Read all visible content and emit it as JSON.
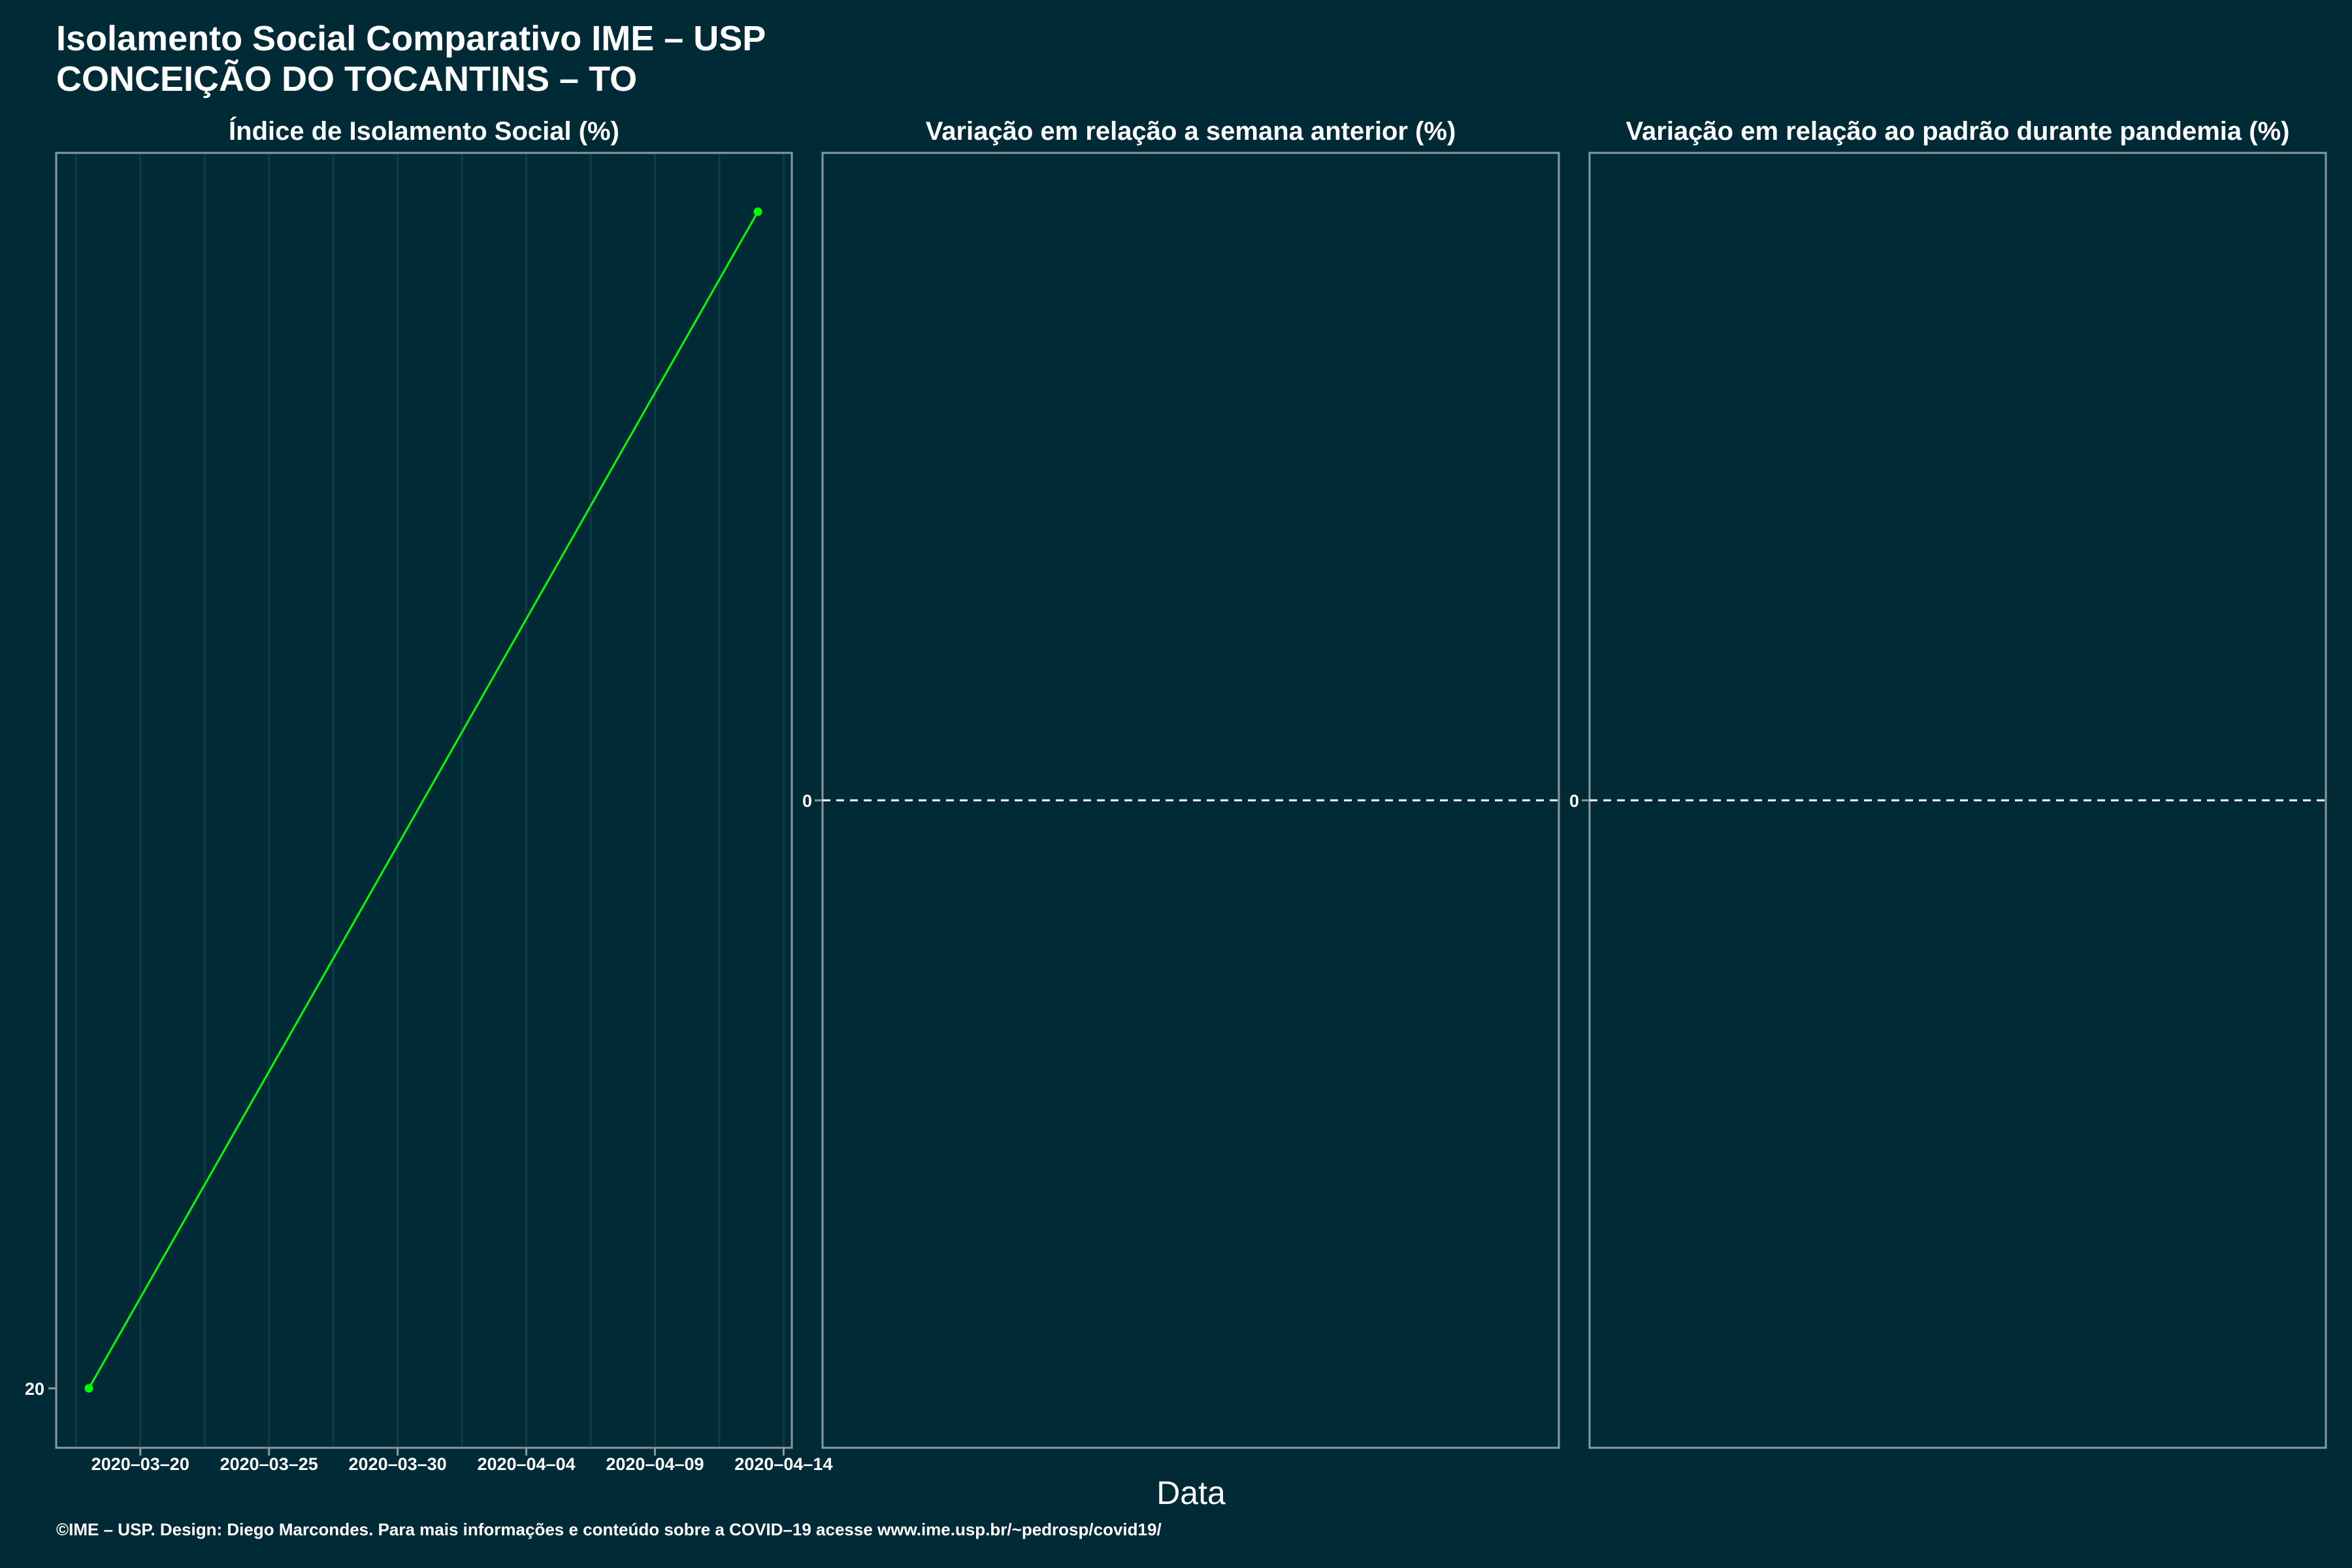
{
  "header": {
    "title": "Isolamento Social Comparativo IME – USP",
    "subtitle": "CONCEIÇÃO DO TOCANTINS – TO"
  },
  "chart_data": [
    {
      "type": "line",
      "title": "Índice de Isolamento Social (%)",
      "xlabel": "Data",
      "x_ticks": [
        "2020–03–20",
        "2020–03–25",
        "2020–03–30",
        "2020–04–04",
        "2020–04–09",
        "2020–04–14"
      ],
      "y_ticks": [
        "20"
      ],
      "series": [
        {
          "x": [
            "2020-03-18",
            "2020-04-13"
          ],
          "y": [
            20,
            49.9
          ],
          "color": "#00ff00"
        }
      ],
      "grid": true
    },
    {
      "type": "line",
      "title": "Variação em relação a semana anterior (%)",
      "y_ticks": [
        "0"
      ],
      "reference_line": 0,
      "series": []
    },
    {
      "type": "line",
      "title": "Variação em relação ao padrão durante pandemia (%)",
      "y_ticks": [
        "0"
      ],
      "reference_line": 0,
      "series": []
    }
  ],
  "colors": {
    "background": "#002b36",
    "panel_border": "#8a9a9e",
    "gridline": "#0e3c46",
    "line": "#00ff00",
    "text": "#ffffff"
  },
  "footer": {
    "credit": "©IME – USP. Design: Diego Marcondes. Para mais informações e conteúdo sobre a COVID–19 acesse www.ime.usp.br/~pedrosp/covid19/"
  }
}
